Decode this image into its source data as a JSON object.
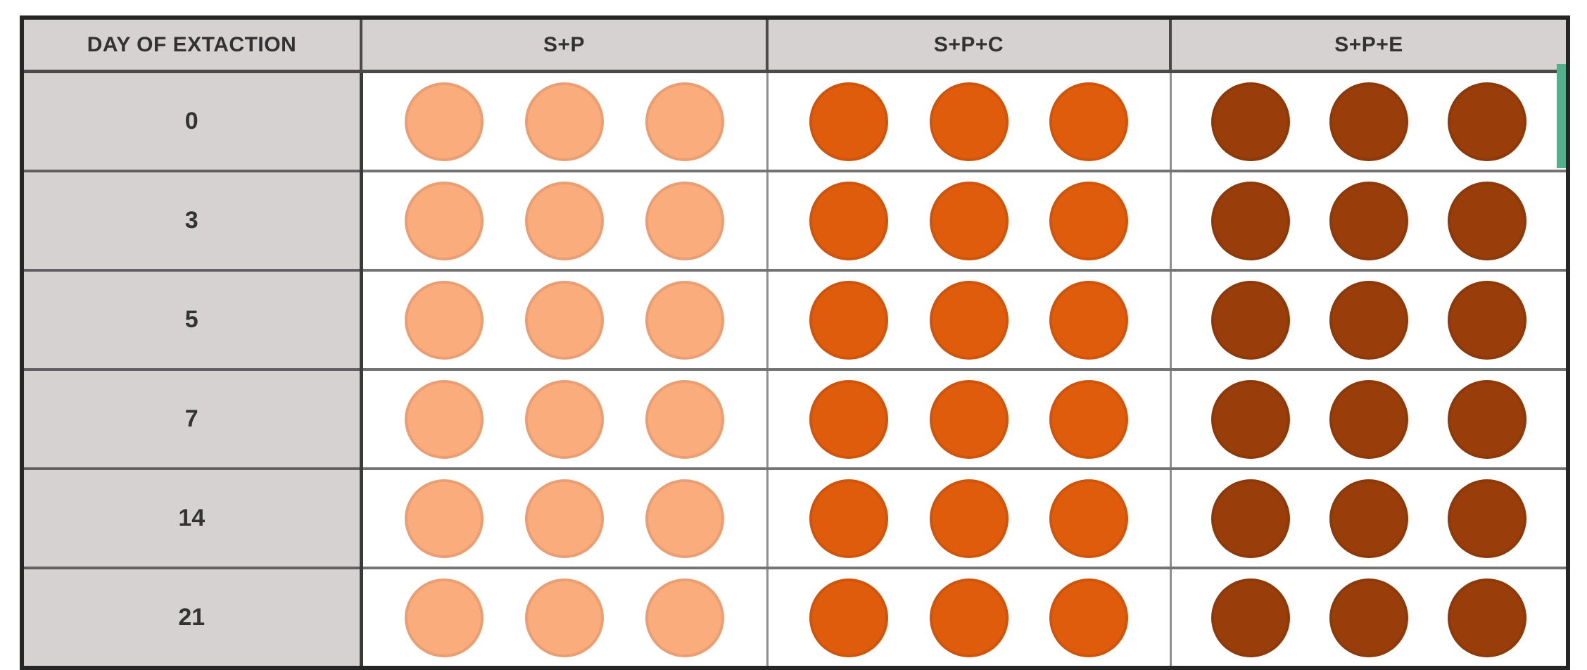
{
  "table": {
    "columns": [
      {
        "key": "day",
        "label": "DAY OF EXTACTION"
      },
      {
        "key": "sp",
        "label": "S+P"
      },
      {
        "key": "spc",
        "label": "S+P+C"
      },
      {
        "key": "spe",
        "label": "S+P+E"
      }
    ],
    "rows": [
      {
        "day": "0"
      },
      {
        "day": "3"
      },
      {
        "day": "5"
      },
      {
        "day": "7"
      },
      {
        "day": "14"
      },
      {
        "day": "21"
      }
    ],
    "dots_per_cell": 3,
    "colors": {
      "sp": "#FBAC7C",
      "spc": "#E05C0D",
      "spe": "#993E0A",
      "header_bg": "#D5D2D1",
      "row_label_bg": "#D5D2D1",
      "border_outer": "#262626",
      "selection_green": "#55AE8C"
    }
  },
  "chart_data": {
    "type": "table",
    "title": "",
    "row_header_label": "DAY OF EXTACTION",
    "days": [
      "0",
      "3",
      "5",
      "7",
      "14",
      "21"
    ],
    "series": [
      {
        "name": "S+P",
        "dot_color": "#FBAC7C",
        "dots_per_day": [
          3,
          3,
          3,
          3,
          3,
          3
        ]
      },
      {
        "name": "S+P+C",
        "dot_color": "#E05C0D",
        "dots_per_day": [
          3,
          3,
          3,
          3,
          3,
          3
        ]
      },
      {
        "name": "S+P+E",
        "dot_color": "#993E0A",
        "dots_per_day": [
          3,
          3,
          3,
          3,
          3,
          3
        ]
      }
    ],
    "legend_position": "none",
    "grid": true
  }
}
